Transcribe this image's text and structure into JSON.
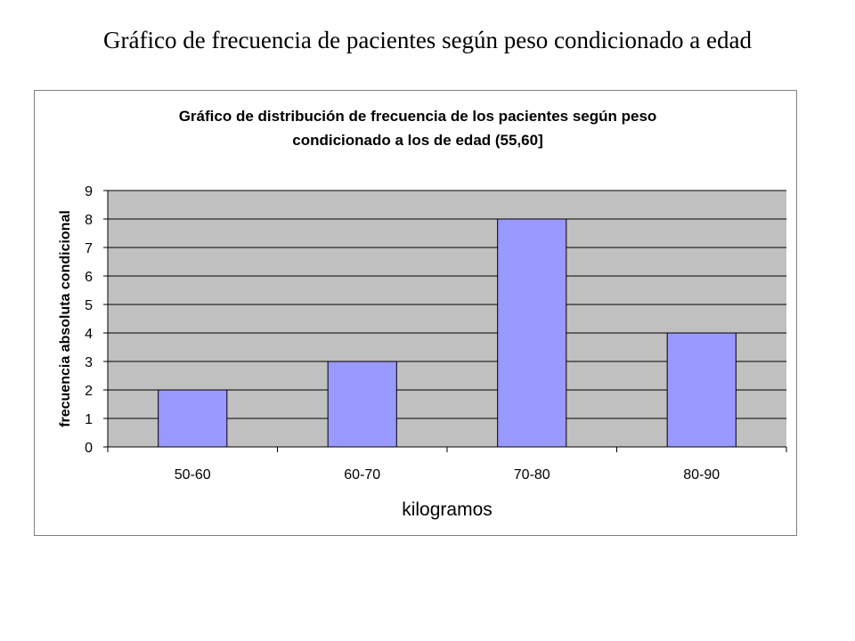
{
  "slide": {
    "title": "Gráfico de frecuencia de pacientes según peso condicionado a edad"
  },
  "chart_data": {
    "type": "bar",
    "title_lines": [
      "Gráfico de distribución de frecuencia de los pacientes según peso",
      "condicionado a los de edad (55,60]"
    ],
    "xlabel": "kilogramos",
    "ylabel": "frecuencia absoluta condicional",
    "categories": [
      "50-60",
      "60-70",
      "70-80",
      "80-90"
    ],
    "values": [
      2,
      3,
      8,
      4
    ],
    "ylim": [
      0,
      9
    ],
    "yticks": [
      0,
      1,
      2,
      3,
      4,
      5,
      6,
      7,
      8,
      9
    ],
    "grid": true,
    "legend": "none",
    "colors": {
      "plot_background": "#c0c0c0",
      "bar_fill": "#9999ff",
      "bar_stroke": "#000000",
      "grid": "#000000"
    }
  }
}
